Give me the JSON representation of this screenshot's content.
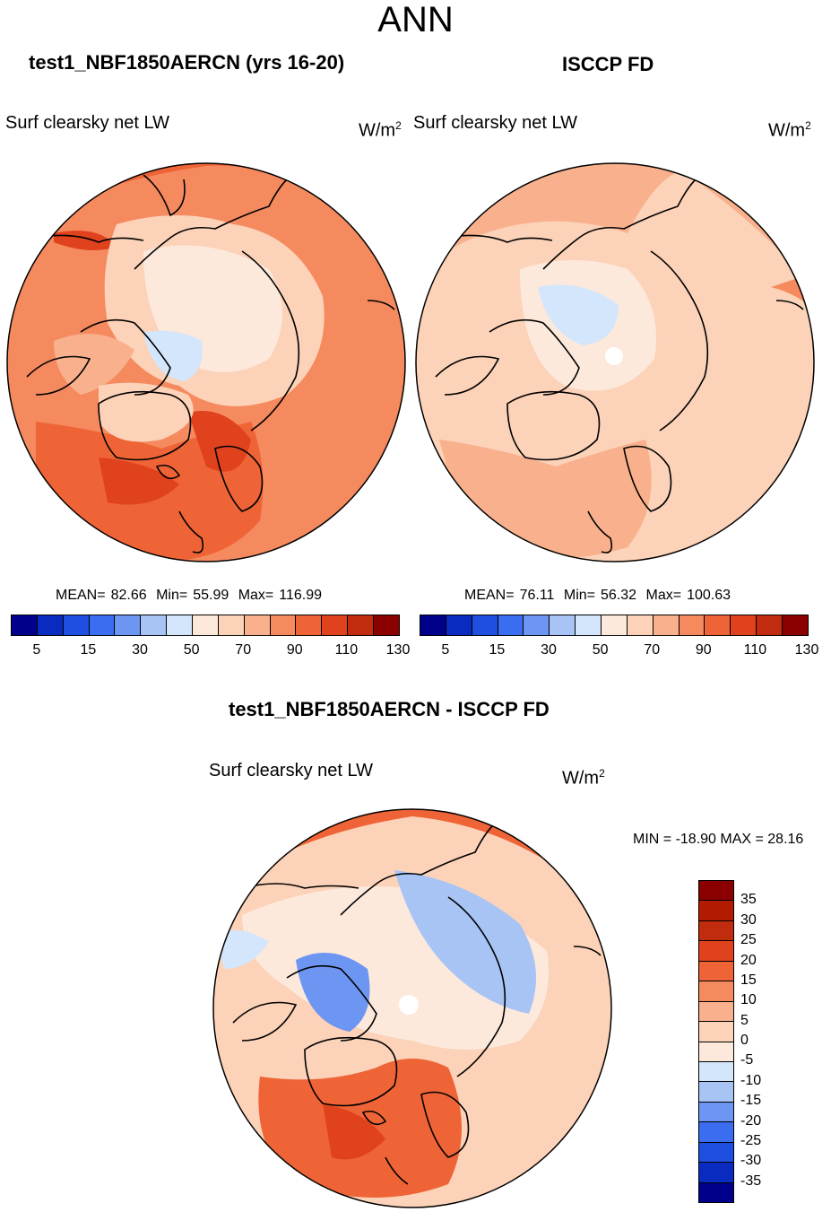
{
  "main_title": "ANN",
  "colors": {
    "abs_scale": [
      "#00008b",
      "#0a2bc0",
      "#1e4fe0",
      "#3a6df0",
      "#6d96f2",
      "#a8c4f5",
      "#d4e6fb",
      "#fde9dc",
      "#fcd2b8",
      "#f9b08c",
      "#f58a5f",
      "#ef6436",
      "#e0421d",
      "#c22c0e",
      "#8b0000"
    ],
    "diff_scale": [
      "#8b0000",
      "#c22c0e",
      "#e0421d",
      "#ef6436",
      "#f58a5f",
      "#f9b08c",
      "#fde9dc",
      "#d4e6fb",
      "#a8c4f5",
      "#6d96f2",
      "#3a6df0",
      "#1e4fe0",
      "#0a2bc0",
      "#00008b"
    ],
    "coast": "#000000"
  },
  "panels": [
    {
      "title": "test1_NBF1850AERCN (yrs 16-20)",
      "variable": "Surf clearsky net LW",
      "units": "W/m",
      "units_sup": "2",
      "mean_label": "MEAN=",
      "mean": "82.66",
      "min_label": "Min=",
      "min": "55.99",
      "max_label": "Max=",
      "max": "116.99"
    },
    {
      "title": "ISCCP FD",
      "variable": "Surf clearsky net LW",
      "units": "W/m",
      "units_sup": "2",
      "mean_label": "MEAN=",
      "mean": "76.11",
      "min_label": "Min=",
      "min": "56.32",
      "max_label": "Max=",
      "max": "100.63"
    }
  ],
  "colorbar_ticks": [
    "5",
    "15",
    "30",
    "50",
    "70",
    "90",
    "110",
    "130"
  ],
  "diff": {
    "title": "test1_NBF1850AERCN - ISCCP FD",
    "variable": "Surf clearsky net LW",
    "units": "W/m",
    "units_sup": "2",
    "minmax": "MIN = -18.90 MAX =  28.16",
    "ticks": [
      "35",
      "30",
      "25",
      "20",
      "15",
      "10",
      "5",
      "0",
      "-5",
      "-10",
      "-15",
      "-20",
      "-25",
      "-30",
      "-35"
    ]
  }
}
